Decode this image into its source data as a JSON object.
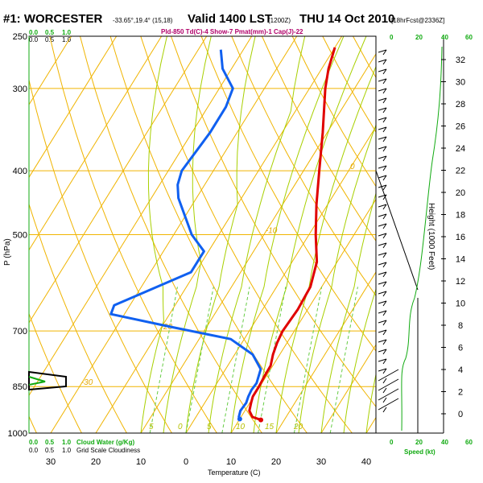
{
  "header": {
    "station": "#1: WORCESTER",
    "coords": "-33.65°,19.4° (15,18)",
    "valid": "Valid 1400 LST",
    "utc": "(1200Z)",
    "date": "THU 14 Oct 2010",
    "fcst": "[18hrFcst@2336Z]",
    "indices": "Pld-850 Td(C)-4 Show-7 Pmat(mm)-1 Cap(J)-22"
  },
  "chart_data": {
    "type": "line",
    "xlabel": "Temperature (C)",
    "ylabel": "P (hPa)",
    "y2label": "Height (1000 Feet)",
    "xlim": [
      -40,
      45
    ],
    "ylim": [
      1000,
      250
    ],
    "yscale": "log",
    "x_ticks": [
      "30",
      "20",
      "10",
      "0",
      "10",
      "20",
      "30",
      "40"
    ],
    "p_ticks": [
      "250",
      "300",
      "400",
      "500",
      "700",
      "850",
      "1000"
    ],
    "height_ticks": [
      "32",
      "30",
      "28",
      "26",
      "24",
      "22",
      "20",
      "18",
      "16",
      "14",
      "12",
      "10",
      "8",
      "6",
      "4",
      "2",
      "0"
    ],
    "isotherm_labels": [
      "10",
      "0",
      "-10",
      "-20",
      "-30"
    ],
    "isotherm_label_values": [
      10,
      0,
      -10,
      -20,
      -30
    ],
    "adiabat_labels": [
      "5",
      "0",
      "5",
      "10",
      "15",
      "20"
    ],
    "series": [
      {
        "name": "Temperature",
        "color": "#e00000",
        "points": [
          [
            14.8,
            955
          ],
          [
            12.5,
            945
          ],
          [
            11.0,
            925
          ],
          [
            10.3,
            900
          ],
          [
            9.8,
            880
          ],
          [
            9.8,
            850
          ],
          [
            9.6,
            820
          ],
          [
            9.5,
            790
          ],
          [
            8.5,
            760
          ],
          [
            7.8,
            730
          ],
          [
            7.4,
            700
          ],
          [
            7.8,
            650
          ],
          [
            7.5,
            600
          ],
          [
            5.5,
            550
          ],
          [
            1.5,
            500
          ],
          [
            -2.5,
            450
          ],
          [
            -6.5,
            400
          ],
          [
            -11.0,
            350
          ],
          [
            -16.5,
            300
          ],
          [
            -18.5,
            280
          ],
          [
            -20.0,
            260
          ]
        ]
      },
      {
        "name": "Dewpoint",
        "color": "#1060f0",
        "points": [
          [
            10.0,
            952
          ],
          [
            9.5,
            945
          ],
          [
            9.0,
            925
          ],
          [
            9.2,
            900
          ],
          [
            8.8,
            880
          ],
          [
            8.6,
            860
          ],
          [
            8.8,
            840
          ],
          [
            7.8,
            800
          ],
          [
            4.0,
            760
          ],
          [
            -3.0,
            720
          ],
          [
            -18.0,
            690
          ],
          [
            -33.0,
            660
          ],
          [
            -33.5,
            640
          ],
          [
            -21.0,
            570
          ],
          [
            -21.0,
            530
          ],
          [
            -26.0,
            500
          ],
          [
            -34.0,
            440
          ],
          [
            -36.0,
            420
          ],
          [
            -37.0,
            400
          ],
          [
            -36.0,
            350
          ],
          [
            -36.0,
            320
          ],
          [
            -37.0,
            300
          ],
          [
            -42.0,
            280
          ],
          [
            -45.0,
            262
          ]
        ]
      }
    ]
  },
  "bottom": {
    "cloud_water": "Cloud Water (g/Kg)",
    "grid_cloudiness": "Grid Scale Cloudiness",
    "scale_top": [
      "0.0",
      "0.5",
      "1.0"
    ],
    "scale_bottom": [
      "0.0",
      "0.5",
      "1.0"
    ],
    "speed_ticks": [
      "0",
      "20",
      "40",
      "60"
    ],
    "speed_label": "Speed (kt)"
  }
}
